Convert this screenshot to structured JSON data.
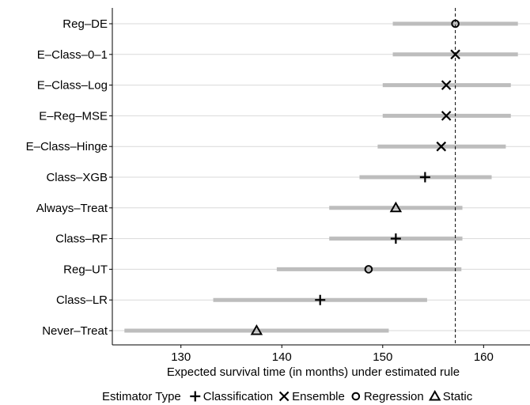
{
  "chart_data": {
    "type": "dot-interval",
    "xlabel": "Expected survival time (in months) under estimated rule",
    "ylabel": "",
    "xlim": [
      123.2,
      164.6
    ],
    "x_ticks": [
      130,
      140,
      150,
      160
    ],
    "reference_line": 157.2,
    "grid": "horizontal",
    "legend": {
      "title": "Estimator Type",
      "position": "bottom",
      "items": [
        {
          "label": "Classification",
          "shape": "plus"
        },
        {
          "label": "Ensemble",
          "shape": "cross"
        },
        {
          "label": "Regression",
          "shape": "circle"
        },
        {
          "label": "Static",
          "shape": "triangle"
        }
      ]
    },
    "rows": [
      {
        "label": "Reg–DE",
        "estimate": 157.2,
        "lower": 151.0,
        "upper": 163.4,
        "shape": "circle"
      },
      {
        "label": "E–Class–0–1",
        "estimate": 157.2,
        "lower": 151.0,
        "upper": 163.4,
        "shape": "cross"
      },
      {
        "label": "E–Class–Log",
        "estimate": 156.3,
        "lower": 150.0,
        "upper": 162.7,
        "shape": "cross"
      },
      {
        "label": "E–Reg–MSE",
        "estimate": 156.3,
        "lower": 150.0,
        "upper": 162.7,
        "shape": "cross"
      },
      {
        "label": "E–Class–Hinge",
        "estimate": 155.8,
        "lower": 149.5,
        "upper": 162.2,
        "shape": "cross"
      },
      {
        "label": "Class–XGB",
        "estimate": 154.2,
        "lower": 147.7,
        "upper": 160.8,
        "shape": "plus"
      },
      {
        "label": "Always–Treat",
        "estimate": 151.3,
        "lower": 144.7,
        "upper": 157.9,
        "shape": "triangle"
      },
      {
        "label": "Class–RF",
        "estimate": 151.3,
        "lower": 144.7,
        "upper": 157.9,
        "shape": "plus"
      },
      {
        "label": "Reg–UT",
        "estimate": 148.6,
        "lower": 139.5,
        "upper": 157.8,
        "shape": "circle"
      },
      {
        "label": "Class–LR",
        "estimate": 143.8,
        "lower": 133.2,
        "upper": 154.4,
        "shape": "plus"
      },
      {
        "label": "Never–Treat",
        "estimate": 137.5,
        "lower": 124.4,
        "upper": 150.6,
        "shape": "triangle"
      }
    ],
    "colors": {
      "interval": "#bdbdbd",
      "gridline": "#d9d9d9",
      "reference_line": "#000000",
      "marker": "#000000"
    }
  }
}
